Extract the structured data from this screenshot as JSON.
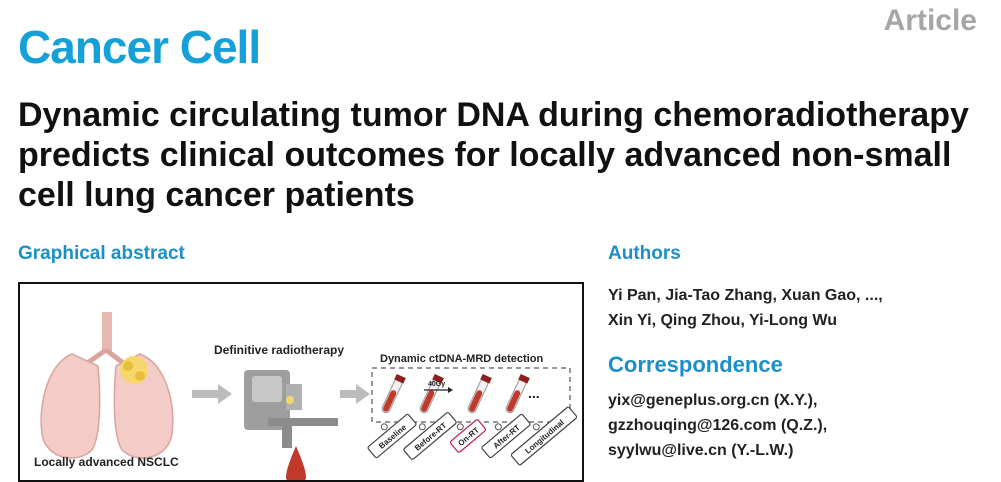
{
  "journal": "Cancer Cell",
  "article_type": "Article",
  "title": "Dynamic circulating tumor DNA during chemoradiotherapy predicts clinical outcomes for locally advanced non-small cell lung cancer patients",
  "graphical_abstract": {
    "heading": "Graphical abstract",
    "radiotherapy_label": "Definitive radiotherapy",
    "detection_label": "Dynamic ctDNA-MRD detection",
    "dose_label": "40Gy",
    "ellipsis": "...",
    "timepoints": [
      "Baseline",
      "Before-RT",
      "On-RT",
      "After-RT",
      "Longitudinal"
    ],
    "nsclc_label": "Locally advanced NSCLC",
    "colors": {
      "lung": "#f3cbc7",
      "tumor": "#f5d76e",
      "tube_blood": "#c0392b",
      "highlight": "#c2185b"
    }
  },
  "authors_section": {
    "heading": "Authors",
    "line1": "Yi Pan, Jia-Tao Zhang, Xuan Gao, ...,",
    "line2": "Xin Yi, Qing Zhou, Yi-Long Wu"
  },
  "correspondence": {
    "heading": "Correspondence",
    "emails": [
      "yix@geneplus.org.cn (X.Y.),",
      "gzzhouqing@126.com (Q.Z.),",
      "syylwu@live.cn (Y.-L.W.)"
    ]
  }
}
